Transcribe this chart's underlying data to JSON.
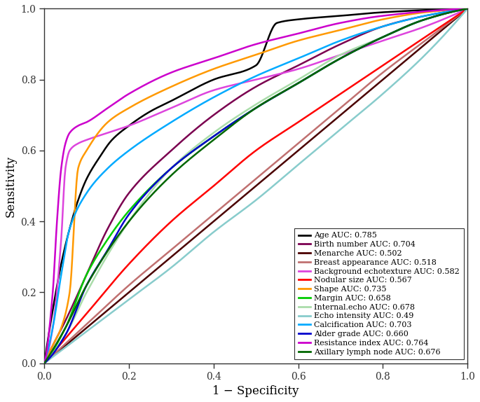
{
  "curves": [
    {
      "label": "Age AUC: 0.785",
      "color": "#000000",
      "auc": 0.785,
      "lw": 1.8,
      "points": [
        [
          0,
          0
        ],
        [
          0.02,
          0.15
        ],
        [
          0.04,
          0.28
        ],
        [
          0.06,
          0.38
        ],
        [
          0.08,
          0.46
        ],
        [
          0.1,
          0.52
        ],
        [
          0.13,
          0.58
        ],
        [
          0.16,
          0.63
        ],
        [
          0.2,
          0.67
        ],
        [
          0.25,
          0.71
        ],
        [
          0.3,
          0.74
        ],
        [
          0.4,
          0.8
        ],
        [
          0.5,
          0.84
        ],
        [
          0.55,
          0.96
        ],
        [
          0.6,
          0.97
        ],
        [
          0.7,
          0.98
        ],
        [
          0.8,
          0.99
        ],
        [
          1.0,
          1.0
        ]
      ]
    },
    {
      "label": "Birth number AUC: 0.704",
      "color": "#7B0050",
      "auc": 0.704,
      "lw": 1.8,
      "points": [
        [
          0,
          0
        ],
        [
          0.02,
          0.05
        ],
        [
          0.05,
          0.12
        ],
        [
          0.1,
          0.25
        ],
        [
          0.15,
          0.38
        ],
        [
          0.2,
          0.48
        ],
        [
          0.3,
          0.6
        ],
        [
          0.4,
          0.7
        ],
        [
          0.5,
          0.78
        ],
        [
          0.6,
          0.84
        ],
        [
          0.7,
          0.9
        ],
        [
          0.8,
          0.95
        ],
        [
          0.9,
          0.98
        ],
        [
          1.0,
          1.0
        ]
      ]
    },
    {
      "label": "Menarche AUC: 0.502",
      "color": "#4B0000",
      "auc": 0.502,
      "lw": 1.8,
      "points": [
        [
          0,
          0
        ],
        [
          0.1,
          0.1
        ],
        [
          0.2,
          0.2
        ],
        [
          0.3,
          0.3
        ],
        [
          0.4,
          0.4
        ],
        [
          0.5,
          0.5
        ],
        [
          0.6,
          0.6
        ],
        [
          0.7,
          0.7
        ],
        [
          0.8,
          0.8
        ],
        [
          0.9,
          0.9
        ],
        [
          1.0,
          1.0
        ]
      ]
    },
    {
      "label": "Breast appearance AUC: 0.518",
      "color": "#C07070",
      "auc": 0.518,
      "lw": 1.8,
      "points": [
        [
          0,
          0
        ],
        [
          0.1,
          0.11
        ],
        [
          0.2,
          0.22
        ],
        [
          0.3,
          0.32
        ],
        [
          0.4,
          0.42
        ],
        [
          0.5,
          0.52
        ],
        [
          0.6,
          0.62
        ],
        [
          0.7,
          0.72
        ],
        [
          0.8,
          0.82
        ],
        [
          0.9,
          0.91
        ],
        [
          1.0,
          1.0
        ]
      ]
    },
    {
      "label": "Background echotexture AUC: 0.582",
      "color": "#DD44DD",
      "auc": 0.582,
      "lw": 1.8,
      "points": [
        [
          0,
          0
        ],
        [
          0.02,
          0.1
        ],
        [
          0.04,
          0.35
        ],
        [
          0.05,
          0.55
        ],
        [
          0.06,
          0.6
        ],
        [
          0.08,
          0.62
        ],
        [
          0.1,
          0.63
        ],
        [
          0.15,
          0.65
        ],
        [
          0.2,
          0.67
        ],
        [
          0.3,
          0.72
        ],
        [
          0.4,
          0.77
        ],
        [
          0.5,
          0.8
        ],
        [
          0.6,
          0.83
        ],
        [
          0.7,
          0.87
        ],
        [
          0.8,
          0.91
        ],
        [
          0.9,
          0.95
        ],
        [
          1.0,
          1.0
        ]
      ]
    },
    {
      "label": "Nodular size AUC: 0.567",
      "color": "#FF0000",
      "auc": 0.567,
      "lw": 1.8,
      "points": [
        [
          0,
          0
        ],
        [
          0.1,
          0.14
        ],
        [
          0.2,
          0.28
        ],
        [
          0.3,
          0.4
        ],
        [
          0.4,
          0.5
        ],
        [
          0.5,
          0.6
        ],
        [
          0.6,
          0.68
        ],
        [
          0.7,
          0.76
        ],
        [
          0.8,
          0.84
        ],
        [
          0.9,
          0.92
        ],
        [
          1.0,
          1.0
        ]
      ]
    },
    {
      "label": "Shape AUC: 0.735",
      "color": "#FF9900",
      "auc": 0.735,
      "lw": 1.8,
      "points": [
        [
          0,
          0
        ],
        [
          0.02,
          0.05
        ],
        [
          0.04,
          0.1
        ],
        [
          0.06,
          0.2
        ],
        [
          0.08,
          0.55
        ],
        [
          0.1,
          0.6
        ],
        [
          0.15,
          0.68
        ],
        [
          0.2,
          0.72
        ],
        [
          0.3,
          0.78
        ],
        [
          0.4,
          0.83
        ],
        [
          0.5,
          0.87
        ],
        [
          0.6,
          0.91
        ],
        [
          0.7,
          0.94
        ],
        [
          0.8,
          0.97
        ],
        [
          0.9,
          0.99
        ],
        [
          1.0,
          1.0
        ]
      ]
    },
    {
      "label": "Margin AUC: 0.658",
      "color": "#00CC00",
      "auc": 0.658,
      "lw": 1.8,
      "points": [
        [
          0,
          0
        ],
        [
          0.05,
          0.1
        ],
        [
          0.1,
          0.25
        ],
        [
          0.15,
          0.35
        ],
        [
          0.2,
          0.43
        ],
        [
          0.3,
          0.55
        ],
        [
          0.4,
          0.64
        ],
        [
          0.5,
          0.72
        ],
        [
          0.6,
          0.79
        ],
        [
          0.7,
          0.86
        ],
        [
          0.8,
          0.92
        ],
        [
          0.9,
          0.97
        ],
        [
          1.0,
          1.0
        ]
      ]
    },
    {
      "label": "Internal.echo AUC: 0.678",
      "color": "#AADDAA",
      "auc": 0.678,
      "lw": 1.8,
      "points": [
        [
          0,
          0
        ],
        [
          0.05,
          0.08
        ],
        [
          0.1,
          0.2
        ],
        [
          0.2,
          0.4
        ],
        [
          0.3,
          0.55
        ],
        [
          0.4,
          0.65
        ],
        [
          0.5,
          0.73
        ],
        [
          0.6,
          0.8
        ],
        [
          0.7,
          0.87
        ],
        [
          0.8,
          0.92
        ],
        [
          0.9,
          0.97
        ],
        [
          1.0,
          1.0
        ]
      ]
    },
    {
      "label": "Echo intensity AUC: 0.49",
      "color": "#88CCCC",
      "auc": 0.49,
      "lw": 1.8,
      "points": [
        [
          0,
          0
        ],
        [
          0.1,
          0.09
        ],
        [
          0.2,
          0.18
        ],
        [
          0.3,
          0.27
        ],
        [
          0.4,
          0.37
        ],
        [
          0.5,
          0.46
        ],
        [
          0.6,
          0.56
        ],
        [
          0.7,
          0.66
        ],
        [
          0.8,
          0.76
        ],
        [
          0.9,
          0.87
        ],
        [
          1.0,
          1.0
        ]
      ]
    },
    {
      "label": "Calcification AUC: 0.703",
      "color": "#00AAFF",
      "auc": 0.703,
      "lw": 1.8,
      "points": [
        [
          0,
          0
        ],
        [
          0.02,
          0.1
        ],
        [
          0.04,
          0.25
        ],
        [
          0.06,
          0.38
        ],
        [
          0.1,
          0.48
        ],
        [
          0.15,
          0.55
        ],
        [
          0.2,
          0.6
        ],
        [
          0.3,
          0.68
        ],
        [
          0.4,
          0.75
        ],
        [
          0.5,
          0.81
        ],
        [
          0.6,
          0.86
        ],
        [
          0.7,
          0.91
        ],
        [
          0.8,
          0.95
        ],
        [
          0.9,
          0.98
        ],
        [
          1.0,
          1.0
        ]
      ]
    },
    {
      "label": "Alder grade AUC: 0.660",
      "color": "#0000CC",
      "auc": 0.66,
      "lw": 1.8,
      "points": [
        [
          0,
          0
        ],
        [
          0.05,
          0.08
        ],
        [
          0.1,
          0.22
        ],
        [
          0.15,
          0.32
        ],
        [
          0.2,
          0.42
        ],
        [
          0.3,
          0.55
        ],
        [
          0.4,
          0.64
        ],
        [
          0.5,
          0.72
        ],
        [
          0.6,
          0.79
        ],
        [
          0.7,
          0.86
        ],
        [
          0.8,
          0.92
        ],
        [
          0.9,
          0.97
        ],
        [
          1.0,
          1.0
        ]
      ]
    },
    {
      "label": "Resistance index AUC: 0.764",
      "color": "#CC00CC",
      "auc": 0.764,
      "lw": 1.8,
      "points": [
        [
          0,
          0
        ],
        [
          0.02,
          0.2
        ],
        [
          0.03,
          0.4
        ],
        [
          0.04,
          0.55
        ],
        [
          0.05,
          0.62
        ],
        [
          0.06,
          0.65
        ],
        [
          0.08,
          0.67
        ],
        [
          0.1,
          0.68
        ],
        [
          0.15,
          0.72
        ],
        [
          0.2,
          0.76
        ],
        [
          0.3,
          0.82
        ],
        [
          0.4,
          0.86
        ],
        [
          0.5,
          0.9
        ],
        [
          0.6,
          0.93
        ],
        [
          0.7,
          0.96
        ],
        [
          0.8,
          0.98
        ],
        [
          1.0,
          1.0
        ]
      ]
    },
    {
      "label": "Axillary lymph node AUC: 0.676",
      "color": "#006600",
      "auc": 0.676,
      "lw": 1.8,
      "points": [
        [
          0,
          0
        ],
        [
          0.05,
          0.1
        ],
        [
          0.1,
          0.22
        ],
        [
          0.2,
          0.4
        ],
        [
          0.3,
          0.53
        ],
        [
          0.4,
          0.63
        ],
        [
          0.5,
          0.72
        ],
        [
          0.6,
          0.79
        ],
        [
          0.7,
          0.86
        ],
        [
          0.8,
          0.92
        ],
        [
          0.9,
          0.97
        ],
        [
          1.0,
          1.0
        ]
      ]
    }
  ],
  "xlabel": "1 − Specificity",
  "ylabel": "Sensitivity",
  "xlim": [
    0.0,
    1.0
  ],
  "ylim": [
    0.0,
    1.0
  ],
  "xticks": [
    0.0,
    0.2,
    0.4,
    0.6,
    0.8,
    1.0
  ],
  "yticks": [
    0.0,
    0.2,
    0.4,
    0.6,
    0.8,
    1.0
  ],
  "figsize": [
    6.85,
    5.74
  ],
  "dpi": 100,
  "bg_color": "#ffffff",
  "legend_fontsize": 8.0,
  "axis_fontsize": 12,
  "tick_fontsize": 10
}
